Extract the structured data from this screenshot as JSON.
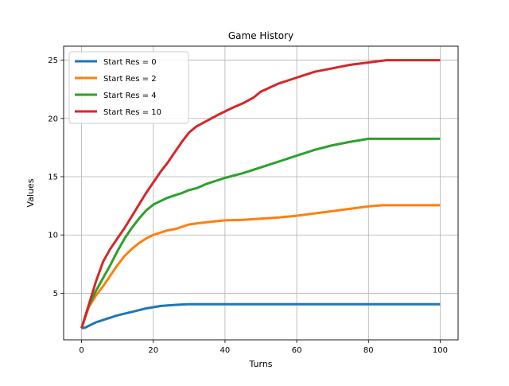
{
  "chart_data": {
    "type": "line",
    "title": "Game History",
    "xlabel": "Turns",
    "ylabel": "Values",
    "xlim": [
      -5,
      105
    ],
    "ylim": [
      1.0,
      26.2
    ],
    "xticks": [
      0,
      20,
      40,
      60,
      80,
      100
    ],
    "yticks": [
      5,
      10,
      15,
      20,
      25
    ],
    "grid": true,
    "legend_position": "upper-left",
    "series": [
      {
        "name": "Start Res = 0",
        "color": "#1f77b4",
        "x": [
          0,
          1,
          2,
          3,
          4,
          5,
          6,
          7,
          8,
          9,
          10,
          12,
          14,
          16,
          18,
          20,
          22,
          24,
          26,
          28,
          30,
          35,
          40,
          50,
          60,
          70,
          80,
          90,
          100
        ],
        "y": [
          2.0,
          2.05,
          2.2,
          2.35,
          2.5,
          2.6,
          2.7,
          2.8,
          2.9,
          3.0,
          3.1,
          3.25,
          3.4,
          3.55,
          3.7,
          3.8,
          3.9,
          3.95,
          4.0,
          4.03,
          4.05,
          4.05,
          4.05,
          4.05,
          4.05,
          4.05,
          4.05,
          4.05,
          4.05
        ]
      },
      {
        "name": "Start Res = 2",
        "color": "#ff7f0e",
        "x": [
          0,
          2,
          4,
          6,
          8,
          10,
          12,
          14,
          16,
          18,
          20,
          22,
          24,
          26,
          28,
          30,
          35,
          40,
          45,
          50,
          55,
          60,
          65,
          70,
          75,
          80,
          84,
          90,
          100
        ],
        "y": [
          2.0,
          3.8,
          4.8,
          5.6,
          6.5,
          7.4,
          8.2,
          8.8,
          9.3,
          9.7,
          10.0,
          10.2,
          10.4,
          10.5,
          10.7,
          10.9,
          11.1,
          11.25,
          11.3,
          11.4,
          11.5,
          11.65,
          11.85,
          12.05,
          12.25,
          12.45,
          12.55,
          12.55,
          12.55
        ]
      },
      {
        "name": "Start Res = 4",
        "color": "#2ca02c",
        "x": [
          0,
          2,
          4,
          6,
          8,
          10,
          12,
          14,
          16,
          18,
          20,
          22,
          24,
          26,
          28,
          30,
          32,
          35,
          40,
          45,
          50,
          55,
          60,
          65,
          70,
          75,
          80,
          85,
          90,
          100
        ],
        "y": [
          2.0,
          3.9,
          5.2,
          6.3,
          7.4,
          8.6,
          9.7,
          10.6,
          11.4,
          12.1,
          12.6,
          12.9,
          13.2,
          13.4,
          13.6,
          13.85,
          14.0,
          14.4,
          14.9,
          15.3,
          15.8,
          16.3,
          16.8,
          17.3,
          17.7,
          18.0,
          18.25,
          18.25,
          18.25,
          18.25
        ]
      },
      {
        "name": "Start Res = 10",
        "color": "#d62728",
        "x": [
          0,
          2,
          4,
          6,
          8,
          10,
          12,
          14,
          16,
          18,
          20,
          22,
          24,
          26,
          28,
          30,
          32,
          35,
          38,
          40,
          42,
          45,
          48,
          50,
          55,
          60,
          65,
          70,
          75,
          80,
          85,
          90,
          100
        ],
        "y": [
          2.0,
          4.0,
          6.0,
          7.7,
          8.8,
          9.7,
          10.6,
          11.6,
          12.6,
          13.6,
          14.5,
          15.4,
          16.2,
          17.1,
          18.0,
          18.8,
          19.3,
          19.8,
          20.3,
          20.6,
          20.9,
          21.3,
          21.8,
          22.3,
          23.0,
          23.5,
          24.0,
          24.3,
          24.6,
          24.8,
          25.0,
          25.0,
          25.0
        ]
      }
    ]
  }
}
